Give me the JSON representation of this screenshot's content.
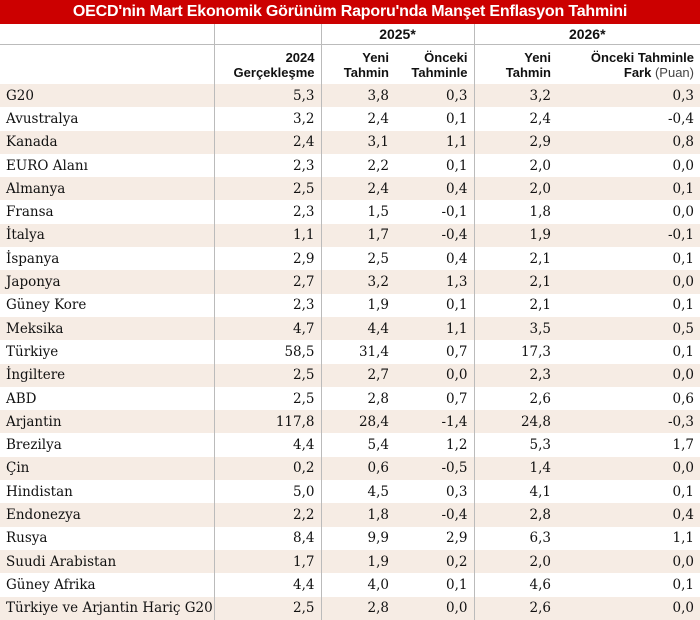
{
  "title": "OECD'nin Mart Ekonomik Görünüm Raporu'nda Manşet Enflasyon Tahmini",
  "years": {
    "y2025": "2025*",
    "y2026": "2026*"
  },
  "headers": {
    "actual_line1": "2024",
    "actual_line2": "Gerçekleşme",
    "new_line1": "Yeni",
    "new_line2": "Tahmin",
    "prev_line1": "Önceki",
    "prev_line2": "Tahminle",
    "new26_line1": "Yeni",
    "new26_line2": "Tahmin",
    "diff_line1": "Önceki Tahminle",
    "diff_line2": "Fark",
    "diff_unit": "(Puan)"
  },
  "rows": [
    {
      "country": "G20",
      "a2024": "5,3",
      "n2025": "3,8",
      "d2025": "0,3",
      "n2026": "3,2",
      "d2026": "0,3"
    },
    {
      "country": "Avustralya",
      "a2024": "3,2",
      "n2025": "2,4",
      "d2025": "0,1",
      "n2026": "2,4",
      "d2026": "-0,4"
    },
    {
      "country": "Kanada",
      "a2024": "2,4",
      "n2025": "3,1",
      "d2025": "1,1",
      "n2026": "2,9",
      "d2026": "0,8"
    },
    {
      "country": "EURO Alanı",
      "a2024": "2,3",
      "n2025": "2,2",
      "d2025": "0,1",
      "n2026": "2,0",
      "d2026": "0,0"
    },
    {
      "country": "Almanya",
      "a2024": "2,5",
      "n2025": "2,4",
      "d2025": "0,4",
      "n2026": "2,0",
      "d2026": "0,1"
    },
    {
      "country": "Fransa",
      "a2024": "2,3",
      "n2025": "1,5",
      "d2025": "-0,1",
      "n2026": "1,8",
      "d2026": "0,0"
    },
    {
      "country": "İtalya",
      "a2024": "1,1",
      "n2025": "1,7",
      "d2025": "-0,4",
      "n2026": "1,9",
      "d2026": "-0,1"
    },
    {
      "country": "İspanya",
      "a2024": "2,9",
      "n2025": "2,5",
      "d2025": "0,4",
      "n2026": "2,1",
      "d2026": "0,1"
    },
    {
      "country": "Japonya",
      "a2024": "2,7",
      "n2025": "3,2",
      "d2025": "1,3",
      "n2026": "2,1",
      "d2026": "0,0"
    },
    {
      "country": "Güney Kore",
      "a2024": "2,3",
      "n2025": "1,9",
      "d2025": "0,1",
      "n2026": "2,1",
      "d2026": "0,1"
    },
    {
      "country": "Meksika",
      "a2024": "4,7",
      "n2025": "4,4",
      "d2025": "1,1",
      "n2026": "3,5",
      "d2026": "0,5"
    },
    {
      "country": "Türkiye",
      "a2024": "58,5",
      "n2025": "31,4",
      "d2025": "0,7",
      "n2026": "17,3",
      "d2026": "0,1"
    },
    {
      "country": "İngiltere",
      "a2024": "2,5",
      "n2025": "2,7",
      "d2025": "0,0",
      "n2026": "2,3",
      "d2026": "0,0"
    },
    {
      "country": "ABD",
      "a2024": "2,5",
      "n2025": "2,8",
      "d2025": "0,7",
      "n2026": "2,6",
      "d2026": "0,6"
    },
    {
      "country": "Arjantin",
      "a2024": "117,8",
      "n2025": "28,4",
      "d2025": "-1,4",
      "n2026": "24,8",
      "d2026": "-0,3"
    },
    {
      "country": "Brezilya",
      "a2024": "4,4",
      "n2025": "5,4",
      "d2025": "1,2",
      "n2026": "5,3",
      "d2026": "1,7"
    },
    {
      "country": "Çin",
      "a2024": "0,2",
      "n2025": "0,6",
      "d2025": "-0,5",
      "n2026": "1,4",
      "d2026": "0,0"
    },
    {
      "country": "Hindistan",
      "a2024": "5,0",
      "n2025": "4,5",
      "d2025": "0,3",
      "n2026": "4,1",
      "d2026": "0,1"
    },
    {
      "country": "Endonezya",
      "a2024": "2,2",
      "n2025": "1,8",
      "d2025": "-0,4",
      "n2026": "2,8",
      "d2026": "0,4"
    },
    {
      "country": "Rusya",
      "a2024": "8,4",
      "n2025": "9,9",
      "d2025": "2,9",
      "n2026": "6,3",
      "d2026": "1,1"
    },
    {
      "country": "Suudi Arabistan",
      "a2024": "1,7",
      "n2025": "1,9",
      "d2025": "0,2",
      "n2026": "2,0",
      "d2026": "0,0"
    },
    {
      "country": "Güney Afrika",
      "a2024": "4,4",
      "n2025": "4,0",
      "d2025": "0,1",
      "n2026": "4,6",
      "d2026": "0,1"
    },
    {
      "country": "Türkiye ve Arjantin Hariç G20",
      "a2024": "2,5",
      "n2025": "2,8",
      "d2025": "0,0",
      "n2026": "2,6",
      "d2026": "0,0"
    }
  ]
}
